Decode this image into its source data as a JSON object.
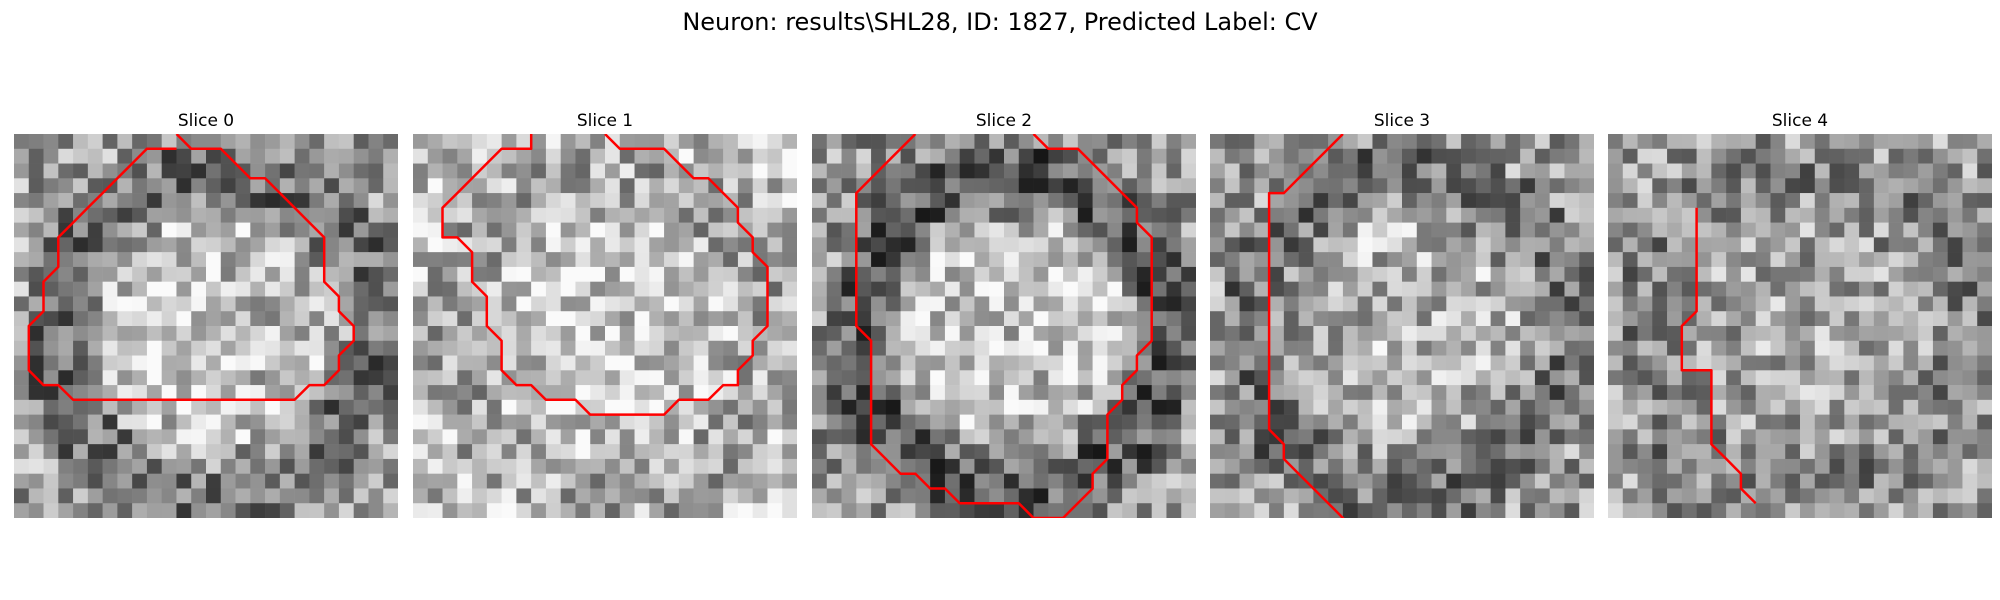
{
  "figure": {
    "title": "Neuron: results\\SHL28, ID: 1827, Predicted Label: CV"
  },
  "colors": {
    "contour": "#ff0000",
    "background": "#ffffff"
  },
  "panels": [
    {
      "title": "Slice 0",
      "seed": 11,
      "base": 0.62,
      "center_brightness": 0.12,
      "ring_darkness": 0.18,
      "contour": [
        [
          10.5,
          -0.5
        ],
        [
          11.5,
          0.5
        ],
        [
          13.5,
          0.5
        ],
        [
          15.5,
          2.5
        ],
        [
          16.5,
          2.5
        ],
        [
          18.5,
          4.5
        ],
        [
          19.5,
          5.5
        ],
        [
          20.5,
          6.5
        ],
        [
          20.5,
          9.5
        ],
        [
          21.5,
          10.5
        ],
        [
          21.5,
          11.5
        ],
        [
          22.5,
          12.5
        ],
        [
          22.5,
          13.5
        ],
        [
          21.5,
          14.5
        ],
        [
          21.5,
          15.5
        ],
        [
          20.5,
          16.5
        ],
        [
          19.5,
          16.5
        ],
        [
          18.5,
          17.5
        ],
        [
          3.5,
          17.5
        ],
        [
          2.5,
          16.5
        ],
        [
          1.5,
          16.5
        ],
        [
          0.5,
          15.5
        ],
        [
          0.5,
          12.5
        ],
        [
          1.5,
          11.5
        ],
        [
          1.5,
          9.5
        ],
        [
          2.5,
          8.5
        ],
        [
          2.5,
          6.5
        ],
        [
          3.5,
          5.5
        ],
        [
          4.5,
          4.5
        ],
        [
          5.5,
          3.5
        ],
        [
          6.5,
          2.5
        ],
        [
          7.5,
          1.5
        ],
        [
          8.5,
          0.5
        ],
        [
          10.5,
          0.5
        ]
      ]
    },
    {
      "title": "Slice 1",
      "seed": 23,
      "base": 0.74,
      "center_brightness": 0.05,
      "ring_darkness": 0.08,
      "contour": [
        [
          7.5,
          -0.5
        ],
        [
          7.5,
          0.5
        ],
        [
          5.5,
          0.5
        ],
        [
          4.5,
          1.5
        ],
        [
          3.5,
          2.5
        ],
        [
          2.5,
          3.5
        ],
        [
          1.5,
          4.5
        ],
        [
          1.5,
          6.5
        ],
        [
          2.5,
          6.5
        ],
        [
          3.5,
          7.5
        ],
        [
          3.5,
          9.5
        ],
        [
          4.5,
          10.5
        ],
        [
          4.5,
          12.5
        ],
        [
          5.5,
          13.5
        ],
        [
          5.5,
          15.5
        ],
        [
          6.5,
          16.5
        ],
        [
          7.5,
          16.5
        ],
        [
          8.5,
          17.5
        ],
        [
          10.5,
          17.5
        ],
        [
          11.5,
          18.5
        ],
        [
          16.5,
          18.5
        ],
        [
          17.5,
          17.5
        ],
        [
          19.5,
          17.5
        ],
        [
          20.5,
          16.5
        ],
        [
          21.5,
          16.5
        ],
        [
          21.5,
          15.5
        ],
        [
          22.5,
          14.5
        ],
        [
          22.5,
          13.5
        ],
        [
          23.5,
          12.5
        ],
        [
          23.5,
          8.5
        ],
        [
          22.5,
          7.5
        ],
        [
          22.5,
          6.5
        ],
        [
          21.5,
          5.5
        ],
        [
          21.5,
          4.5
        ],
        [
          20.5,
          3.5
        ],
        [
          19.5,
          2.5
        ],
        [
          18.5,
          2.5
        ],
        [
          17.5,
          1.5
        ],
        [
          16.5,
          0.5
        ],
        [
          13.5,
          0.5
        ],
        [
          12.5,
          -0.5
        ]
      ]
    },
    {
      "title": "Slice 2",
      "seed": 37,
      "base": 0.58,
      "center_brightness": 0.18,
      "ring_darkness": 0.22,
      "contour": [
        [
          6.5,
          -0.5
        ],
        [
          5.5,
          0.5
        ],
        [
          4.5,
          1.5
        ],
        [
          3.5,
          2.5
        ],
        [
          2.5,
          3.5
        ],
        [
          2.5,
          8.5
        ],
        [
          2.5,
          12.5
        ],
        [
          3.5,
          13.5
        ],
        [
          3.5,
          20.5
        ],
        [
          4.5,
          21.5
        ],
        [
          5.5,
          22.5
        ],
        [
          6.5,
          22.5
        ],
        [
          7.5,
          23.5
        ],
        [
          8.5,
          23.5
        ],
        [
          9.5,
          24.5
        ],
        [
          13.5,
          24.5
        ],
        [
          14.5,
          25.5
        ],
        [
          16.5,
          25.5
        ],
        [
          17.5,
          24.5
        ],
        [
          18.5,
          23.5
        ],
        [
          18.5,
          22.5
        ],
        [
          19.5,
          21.5
        ],
        [
          19.5,
          18.5
        ],
        [
          20.5,
          17.5
        ],
        [
          20.5,
          16.5
        ],
        [
          21.5,
          15.5
        ],
        [
          21.5,
          14.5
        ],
        [
          22.5,
          13.5
        ],
        [
          22.5,
          6.5
        ],
        [
          21.5,
          5.5
        ],
        [
          21.5,
          4.5
        ],
        [
          20.5,
          3.5
        ],
        [
          19.5,
          2.5
        ],
        [
          18.5,
          1.5
        ],
        [
          17.5,
          0.5
        ],
        [
          15.5,
          0.5
        ],
        [
          14.5,
          -0.5
        ]
      ]
    },
    {
      "title": "Slice 3",
      "seed": 53,
      "base": 0.6,
      "center_brightness": 0.1,
      "ring_darkness": 0.15,
      "contour": [
        [
          8.5,
          -0.5
        ],
        [
          7.5,
          0.5
        ],
        [
          6.5,
          1.5
        ],
        [
          5.5,
          2.5
        ],
        [
          4.5,
          3.5
        ],
        [
          3.5,
          3.5
        ],
        [
          3.5,
          19.5
        ],
        [
          4.5,
          20.5
        ],
        [
          4.5,
          21.5
        ],
        [
          5.5,
          22.5
        ],
        [
          6.5,
          23.5
        ],
        [
          7.5,
          24.5
        ],
        [
          8.5,
          25.5
        ],
        [
          8.5,
          25.5
        ],
        [
          9.5,
          26.5
        ]
      ]
    },
    {
      "title": "Slice 4",
      "seed": 71,
      "base": 0.6,
      "center_brightness": 0.05,
      "ring_darkness": 0.08,
      "contour": [
        [
          5.5,
          4.5
        ],
        [
          5.5,
          11.5
        ],
        [
          4.5,
          12.5
        ],
        [
          4.5,
          15.5
        ],
        [
          6.5,
          15.5
        ],
        [
          6.5,
          20.5
        ],
        [
          7.5,
          21.5
        ],
        [
          8.5,
          22.5
        ],
        [
          8.5,
          23.5
        ],
        [
          9.5,
          24.5
        ],
        [
          9.5,
          24.5
        ]
      ]
    }
  ]
}
